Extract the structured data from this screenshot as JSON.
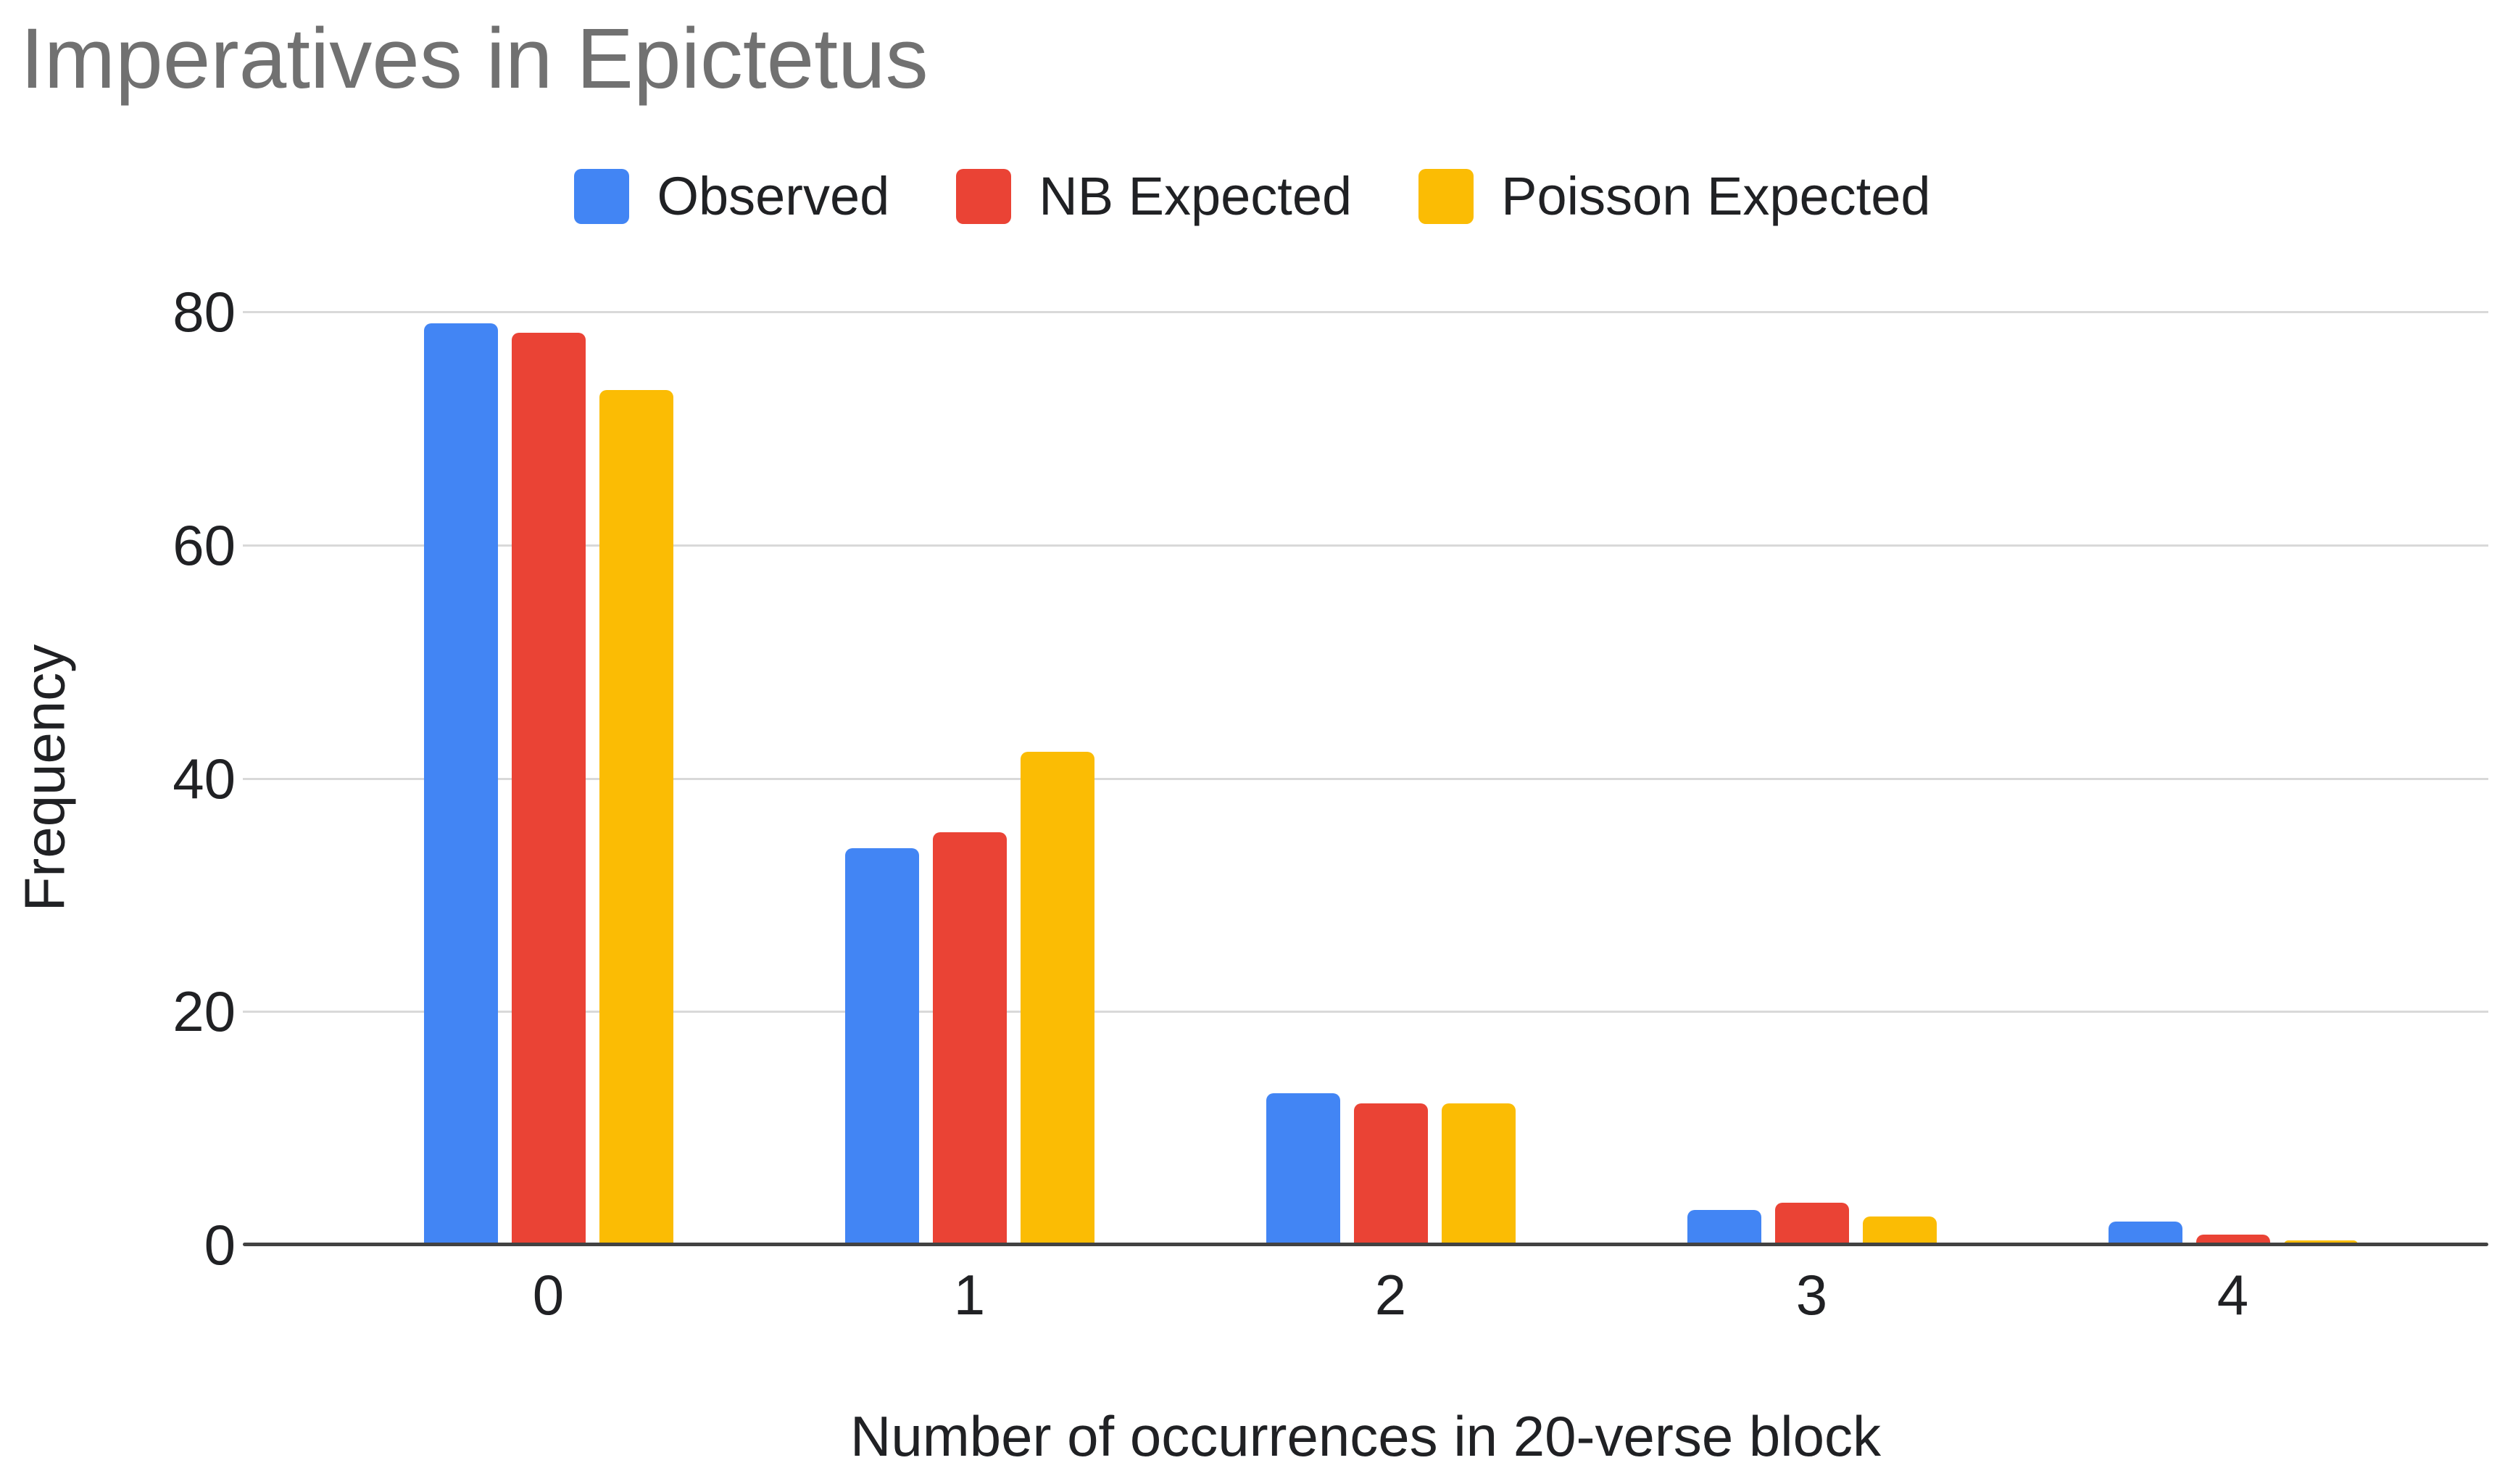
{
  "chart_data": {
    "type": "bar",
    "title": "Imperatives in Epictetus",
    "categories": [
      "0",
      "1",
      "2",
      "3",
      "4"
    ],
    "series": [
      {
        "name": "Observed",
        "color": "#4285F4",
        "values": [
          79,
          34,
          13,
          3,
          2
        ]
      },
      {
        "name": "NB Expected",
        "color": "#EA4335",
        "values": [
          78.2,
          35.4,
          12.1,
          3.6,
          0.9
        ]
      },
      {
        "name": "Poisson Expected",
        "color": "#FBBC04",
        "values": [
          73.3,
          42.3,
          12.1,
          2.4,
          0.4
        ]
      }
    ],
    "xlabel": "Number of occurrences in 20-verse block",
    "ylabel": "Frequency",
    "ylim": [
      0,
      80
    ],
    "y_ticks": [
      0,
      20,
      40,
      60,
      80
    ],
    "grid": true,
    "legend_position": "top",
    "colors": {
      "title_text": "#717171",
      "axis_text": "#202124",
      "gridline": "#d9d9d9",
      "axis_line": "#424242",
      "background": "#ffffff"
    }
  }
}
